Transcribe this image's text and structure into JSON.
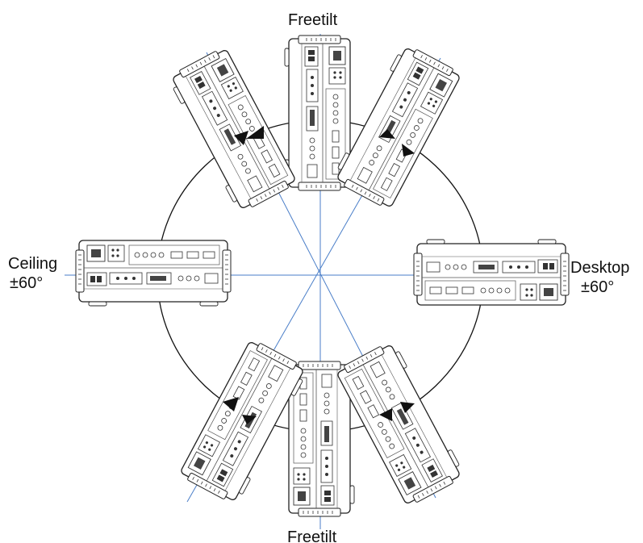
{
  "diagram": {
    "labels": {
      "top": "Freetilt",
      "bottom": "Freetilt",
      "ceiling": "Ceiling",
      "ceiling_range": "±60°",
      "desktop": "Desktop",
      "desktop_range": "±60°"
    },
    "projector_orientations": [
      "ceiling",
      "upper-left",
      "top",
      "upper-right",
      "desktop",
      "lower-right",
      "bottom",
      "lower-left"
    ],
    "colors": {
      "axis_line": "#4a7ec8",
      "circle": "#111111",
      "device_outline": "#222222",
      "text": "#111111"
    }
  }
}
